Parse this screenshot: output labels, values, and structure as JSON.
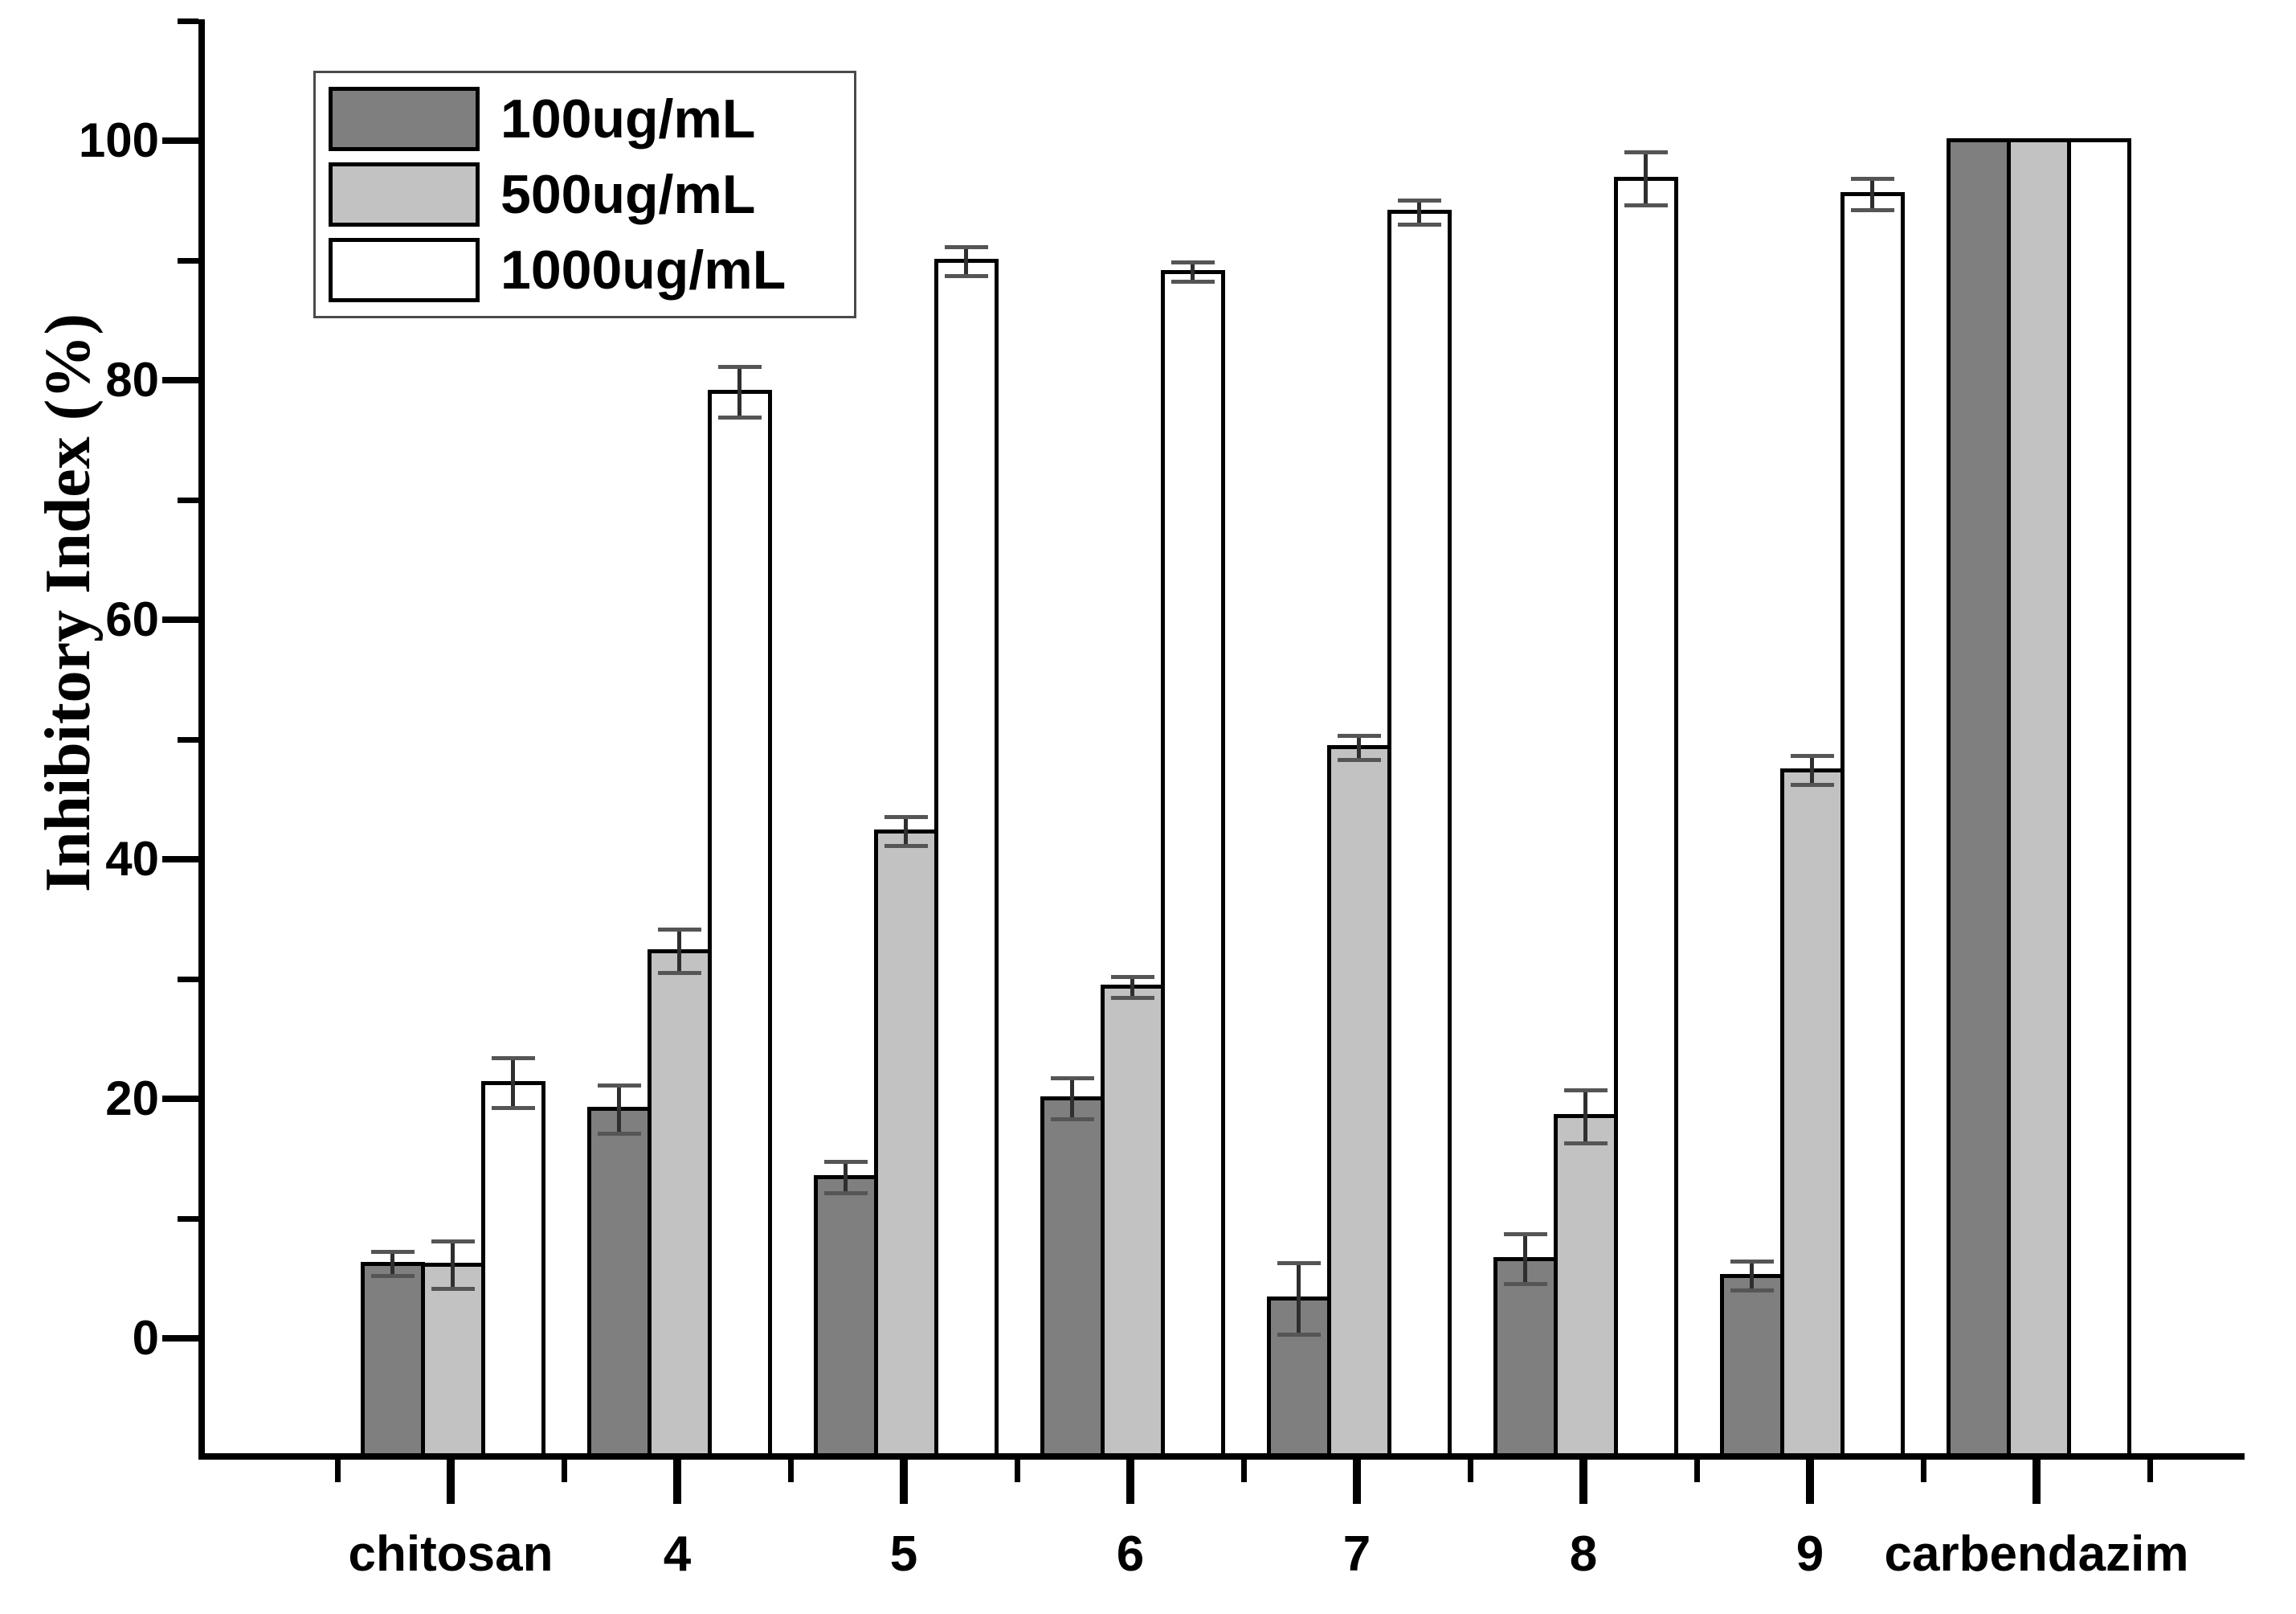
{
  "figure": {
    "background": "#ffffff",
    "legend": {
      "position": "upper-left",
      "items": [
        {
          "label": "100ug/mL",
          "color": "#7f7f7f"
        },
        {
          "label": "500ug/mL",
          "color": "#c2c2c2"
        },
        {
          "label": "1000ug/mL",
          "color": "#ffffff"
        }
      ]
    }
  },
  "chart_data": {
    "type": "bar",
    "title": "",
    "xlabel": "",
    "ylabel": "Inhibitory Index (%)",
    "categories": [
      "chitosan",
      "4",
      "5",
      "6",
      "7",
      "8",
      "9",
      "carbendazim"
    ],
    "series": [
      {
        "name": "100ug/mL",
        "color": "#7f7f7f",
        "values": [
          6.2,
          19.1,
          13.4,
          20.0,
          3.3,
          6.6,
          5.2,
          100
        ],
        "errors": [
          1.0,
          2.0,
          1.3,
          1.7,
          3.0,
          2.1,
          1.2,
          0
        ]
      },
      {
        "name": "500ug/mL",
        "color": "#c2c2c2",
        "values": [
          6.1,
          32.3,
          42.3,
          29.3,
          49.3,
          18.5,
          47.4,
          100
        ],
        "errors": [
          2.0,
          1.8,
          1.2,
          0.9,
          1.0,
          2.2,
          1.2,
          0
        ]
      },
      {
        "name": "1000ug/mL",
        "color": "#ffffff",
        "values": [
          21.3,
          79.0,
          89.9,
          89.0,
          94.0,
          96.8,
          95.5,
          100
        ],
        "errors": [
          2.1,
          2.1,
          1.2,
          0.8,
          1.0,
          2.2,
          1.3,
          0
        ]
      }
    ],
    "ylim": [
      -10,
      110
    ],
    "yticks": [
      0,
      20,
      40,
      60,
      80,
      100
    ],
    "yminorticks": [
      10,
      30,
      50,
      70,
      90,
      110
    ],
    "grid": false,
    "bar_outline": "#000000",
    "error_bar_color": "#2f2f2f",
    "legend_position": "upper-left"
  }
}
